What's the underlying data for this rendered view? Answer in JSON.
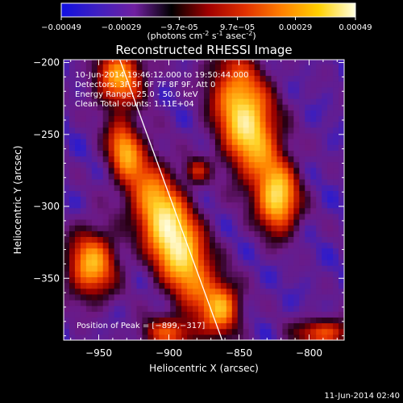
{
  "colorbar": {
    "ticks": [
      "-0.00049",
      "-0.00029",
      "-9.7e-05",
      "9.7e-05",
      "0.00029",
      "0.00049"
    ],
    "unit_main": "(photons cm",
    "unit_exp1": "-2",
    "unit_s": " s",
    "unit_exp2": "-1",
    "unit_asec": " asec",
    "unit_exp3": "-2",
    "unit_close": ")",
    "range": [
      -0.00049,
      0.00049
    ],
    "colors": [
      "#1010e0",
      "#4020c0",
      "#7020a0",
      "#000000",
      "#a00000",
      "#e03000",
      "#ff8000",
      "#ffd000",
      "#ffffe0"
    ]
  },
  "chart_data": {
    "type": "heatmap",
    "title": "Reconstructed RHESSI Image",
    "xlabel": "Heliocentric X (arcsec)",
    "ylabel": "Heliocentric Y (arcsec)",
    "xlim": [
      -975,
      -775
    ],
    "ylim": [
      -393,
      -198
    ],
    "xticks": [
      -950,
      -900,
      -850,
      -800
    ],
    "yticks": [
      -200,
      -250,
      -300,
      -350
    ],
    "xtick_labels": [
      "−950",
      "−900",
      "−850",
      "−800"
    ],
    "ytick_labels": [
      "−200",
      "−250",
      "−300",
      "−350"
    ],
    "annotations": [
      "10-Jun-2014 19:46:12.000 to 19:50:44.000",
      "Detectors: 3F 5F 6F 7F 8F 9F, Att 0",
      "Energy Range: 25.0 - 50.0 keV",
      "Clean     Total counts: 1.11E+04"
    ],
    "peak_label": "Position of Peak = [−899,−317]",
    "peak": [
      -899,
      -317
    ],
    "limb_line": [
      [
        -935,
        -198
      ],
      [
        -862,
        -393
      ]
    ],
    "sources": [
      {
        "x": -898,
        "y": -320,
        "sx": 13,
        "sy": 36,
        "angle": -25,
        "amp": 1.0
      },
      {
        "x": -935,
        "y": -210,
        "sx": 12,
        "sy": 14,
        "angle": 0,
        "amp": 0.65
      },
      {
        "x": -932,
        "y": -260,
        "sx": 8,
        "sy": 14,
        "angle": -10,
        "amp": 0.55
      },
      {
        "x": -845,
        "y": -240,
        "sx": 14,
        "sy": 30,
        "angle": -15,
        "amp": 0.9
      },
      {
        "x": -822,
        "y": -295,
        "sx": 10,
        "sy": 16,
        "angle": 0,
        "amp": 0.75
      },
      {
        "x": -955,
        "y": -340,
        "sx": 12,
        "sy": 16,
        "angle": 0,
        "amp": 0.7
      },
      {
        "x": -862,
        "y": -370,
        "sx": 9,
        "sy": 12,
        "angle": 0,
        "amp": 0.55
      },
      {
        "x": -900,
        "y": -388,
        "sx": 14,
        "sy": 8,
        "angle": 0,
        "amp": 0.45
      },
      {
        "x": -790,
        "y": -388,
        "sx": 14,
        "sy": 7,
        "angle": 0,
        "amp": 0.5
      },
      {
        "x": -880,
        "y": -275,
        "sx": 6,
        "sy": 6,
        "angle": 0,
        "amp": 0.35
      }
    ]
  },
  "footer_date": "11-Jun-2014 02:40"
}
